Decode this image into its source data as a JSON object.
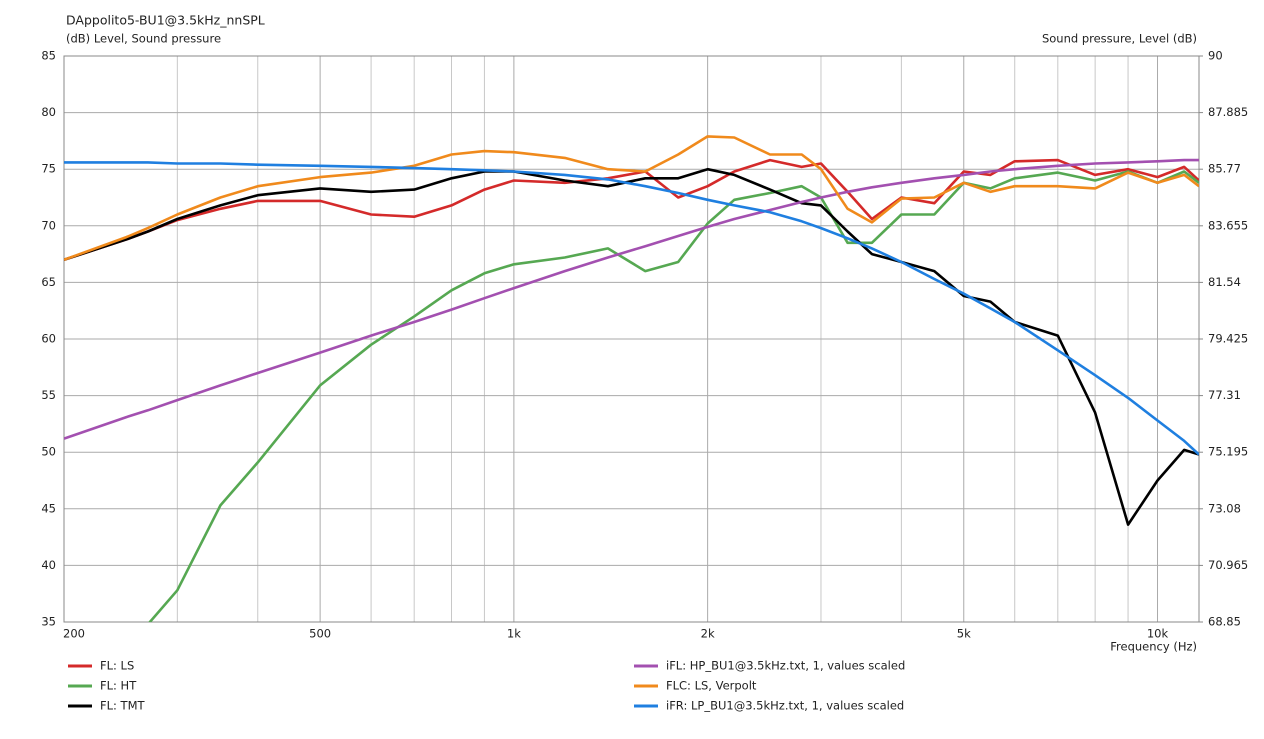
{
  "chart_data": {
    "type": "line",
    "title": "DAppolito5-BU1@3.5kHz_nnSPL",
    "ylabel": "(dB)  Level, Sound pressure",
    "y2label": "Sound pressure, Level  (dB)",
    "xlabel": "Frequency  (Hz)",
    "xscale": "log",
    "grid": true,
    "legend": "bottom",
    "xlim": [
      200,
      11600
    ],
    "xticks": [
      200,
      500,
      {
        "value": 1000,
        "label": "1k"
      },
      {
        "value": 2000,
        "label": "2k"
      },
      {
        "value": 5000,
        "label": "5k"
      },
      {
        "value": 10000,
        "label": "10k"
      }
    ],
    "x_minor_ticks": [
      300,
      400,
      600,
      700,
      800,
      900,
      3000,
      4000,
      6000,
      7000,
      8000,
      9000
    ],
    "ylim": [
      35,
      85
    ],
    "yticks": [
      35,
      40,
      45,
      50,
      55,
      60,
      65,
      70,
      75,
      80,
      85
    ],
    "y2lim": [
      68.85,
      90
    ],
    "y2ticks": [
      68.85,
      70.965,
      73.08,
      75.195,
      77.31,
      79.425,
      81.54,
      83.655,
      85.77,
      87.885,
      90
    ],
    "x": [
      200,
      250,
      270,
      300,
      350,
      400,
      500,
      600,
      700,
      800,
      900,
      1000,
      1200,
      1400,
      1600,
      1800,
      2000,
      2200,
      2500,
      2800,
      3000,
      3300,
      3600,
      4000,
      4500,
      5000,
      5500,
      6000,
      7000,
      8000,
      9000,
      10000,
      11000,
      11600
    ],
    "series": [
      {
        "name": "FL: LS",
        "color": "#d42a2a",
        "values": [
          67,
          68.8,
          69.5,
          70.5,
          71.5,
          72.2,
          72.2,
          71,
          70.8,
          71.8,
          73.2,
          74,
          73.8,
          74.2,
          74.8,
          72.5,
          73.5,
          74.8,
          75.8,
          75.2,
          75.5,
          73,
          70.6,
          72.5,
          72,
          74.8,
          74.5,
          75.7,
          75.8,
          74.5,
          75,
          74.3,
          75.2,
          74
        ]
      },
      {
        "name": "FL: HT",
        "color": "#56a852",
        "values": [
          null,
          null,
          34.8,
          37.8,
          45.3,
          49.1,
          55.9,
          59.5,
          62,
          64.3,
          65.8,
          66.6,
          67.2,
          68,
          66,
          66.8,
          70.2,
          72.3,
          72.9,
          73.5,
          72.5,
          68.5,
          68.5,
          71,
          71,
          73.8,
          73.3,
          74.2,
          74.7,
          74,
          74.8,
          73.8,
          74.8,
          73.8
        ]
      },
      {
        "name": "FL: TMT",
        "color": "#000000",
        "values": [
          67,
          68.8,
          69.5,
          70.6,
          71.8,
          72.7,
          73.3,
          73,
          73.2,
          74.2,
          74.8,
          74.8,
          74,
          73.5,
          74.2,
          74.2,
          75,
          74.5,
          73.2,
          72,
          71.8,
          69.5,
          67.5,
          66.8,
          66,
          63.8,
          63.3,
          61.5,
          60.3,
          53.5,
          43.6,
          47.5,
          50.2,
          49.8
        ]
      },
      {
        "name": "iFL: HP_BU1@3.5kHz.txt, 1, values scaled",
        "color": "#a350b0",
        "values": [
          51.2,
          53.1,
          53.7,
          54.6,
          55.9,
          57,
          58.8,
          60.3,
          61.5,
          62.6,
          63.6,
          64.5,
          66,
          67.2,
          68.2,
          69.1,
          69.9,
          70.6,
          71.4,
          72.1,
          72.5,
          73,
          73.4,
          73.8,
          74.2,
          74.5,
          74.8,
          75,
          75.3,
          75.5,
          75.6,
          75.7,
          75.8,
          75.8
        ]
      },
      {
        "name": "FLC: LS, Verpolt",
        "color": "#f08a1c",
        "values": [
          67,
          69,
          69.8,
          71,
          72.5,
          73.5,
          74.3,
          74.7,
          75.3,
          76.3,
          76.6,
          76.5,
          76,
          75,
          74.8,
          76.3,
          77.9,
          77.8,
          76.3,
          76.3,
          75,
          71.5,
          70.3,
          72.4,
          72.5,
          73.8,
          73,
          73.5,
          73.5,
          73.3,
          74.7,
          73.8,
          74.5,
          73.5
        ]
      },
      {
        "name": "iFR: LP_BU1@3.5kHz.txt, 1, values scaled",
        "color": "#1f7fe0",
        "values": [
          75.6,
          75.6,
          75.6,
          75.5,
          75.5,
          75.4,
          75.3,
          75.2,
          75.1,
          75,
          74.9,
          74.8,
          74.5,
          74.1,
          73.5,
          72.9,
          72.3,
          71.8,
          71.2,
          70.4,
          69.8,
          68.9,
          68,
          66.8,
          65.3,
          64,
          62.7,
          61.5,
          59,
          56.8,
          54.8,
          52.8,
          51,
          49.8
        ]
      }
    ]
  }
}
